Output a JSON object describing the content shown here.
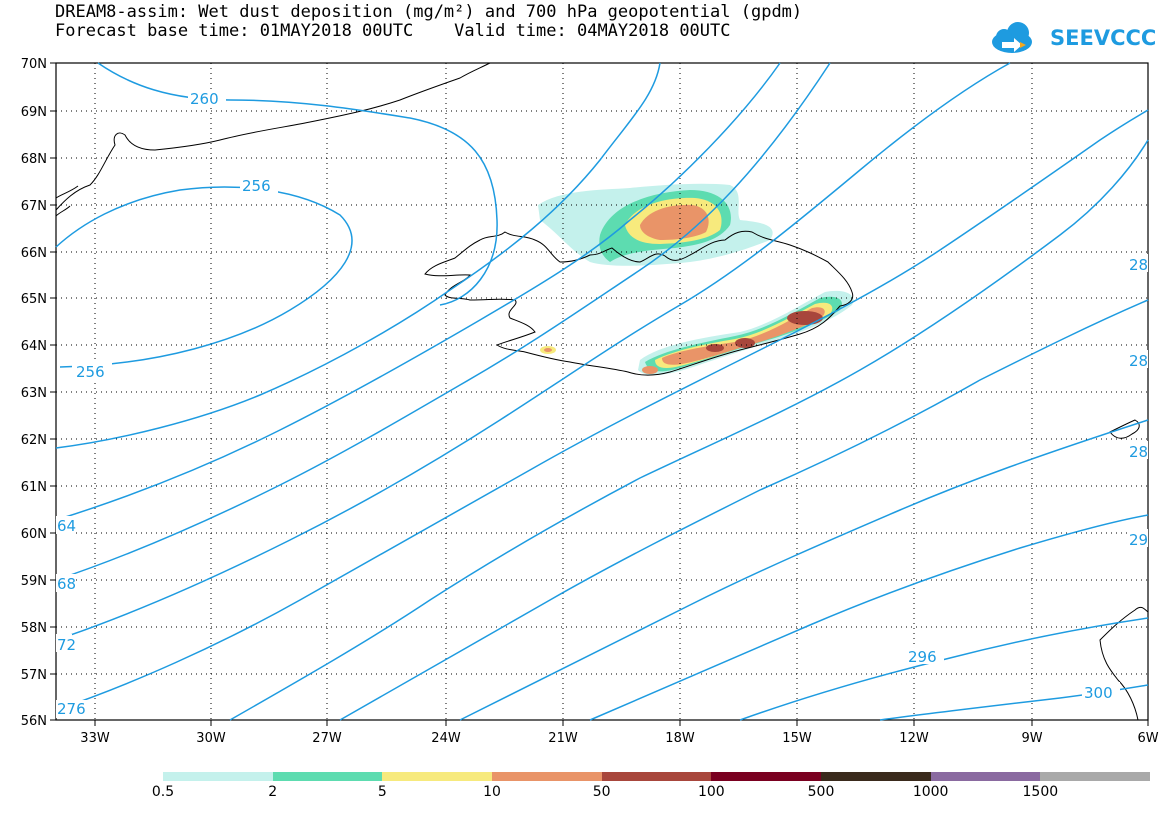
{
  "title_line1": "DREAM8-assim: Wet dust deposition (mg/m²) and 700 hPa geopotential (gpdm)",
  "title_line2": "Forecast base time: 01MAY2018 00UTC    Valid time: 04MAY2018 00UTC",
  "logo_text": "SEEVCCC",
  "lat_labels": [
    "70N",
    "69N",
    "68N",
    "67N",
    "66N",
    "65N",
    "64N",
    "63N",
    "62N",
    "61N",
    "60N",
    "59N",
    "58N",
    "57N",
    "56N"
  ],
  "lon_labels": [
    "33W",
    "30W",
    "27W",
    "24W",
    "21W",
    "18W",
    "15W",
    "12W",
    "9W",
    "6W"
  ],
  "contour_labels": {
    "l260": "260",
    "l256a": "256",
    "l256b": "256",
    "l64": "64",
    "l68": "68",
    "l72": "72",
    "l276": "276",
    "l296": "296",
    "l300": "300",
    "r28a": "28",
    "r28b": "28",
    "r28c": "28",
    "r29": "29"
  },
  "legend": {
    "colors": [
      "#c4f1ec",
      "#5ddcb0",
      "#f7ea7d",
      "#e99468",
      "#a8463c",
      "#7a0020",
      "#3a2a1c",
      "#8a6aa0",
      "#a9a9a9"
    ],
    "ticks": [
      "0.5",
      "2",
      "5",
      "10",
      "50",
      "100",
      "500",
      "1000",
      "1500"
    ]
  },
  "colors": {
    "contour": "#1e9be0",
    "coast": "#000000"
  }
}
